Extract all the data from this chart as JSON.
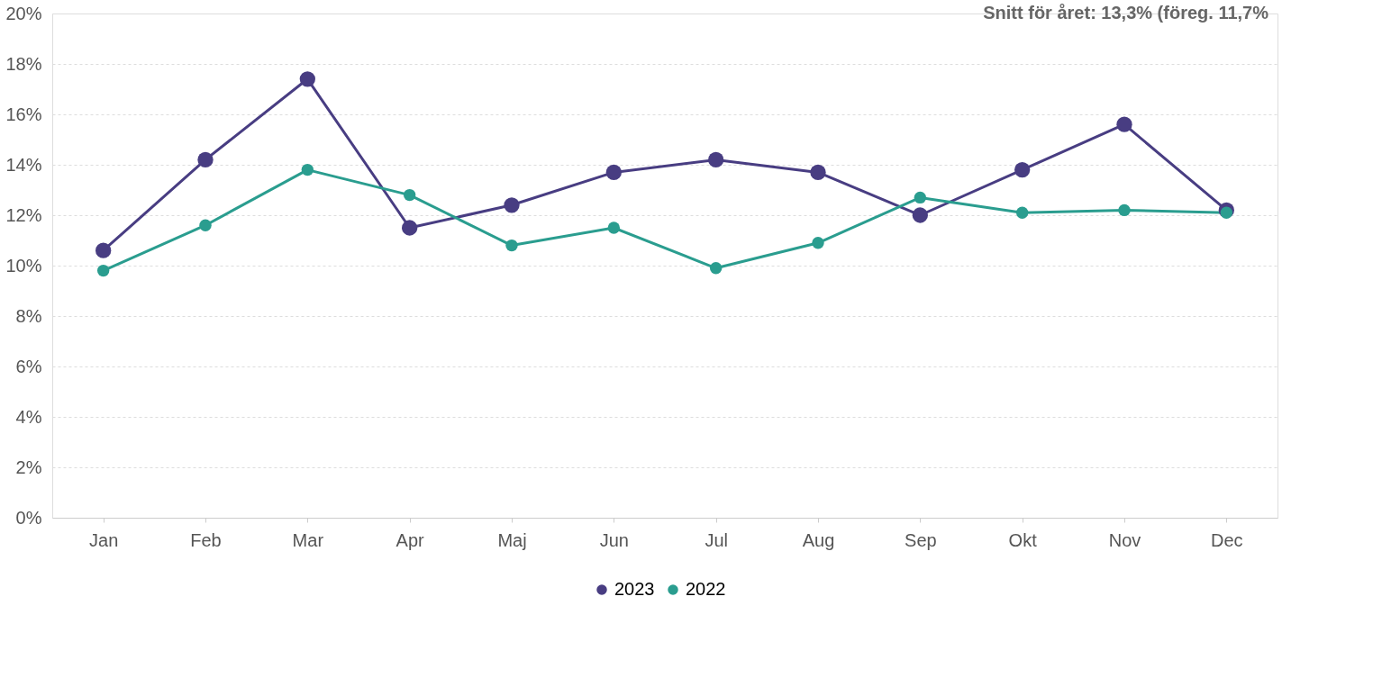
{
  "chart_data": {
    "type": "line",
    "categories": [
      "Jan",
      "Feb",
      "Mar",
      "Apr",
      "Maj",
      "Jun",
      "Jul",
      "Aug",
      "Sep",
      "Okt",
      "Nov",
      "Dec"
    ],
    "series": [
      {
        "name": "2023",
        "color": "#483d82",
        "values": [
          10.6,
          14.2,
          17.4,
          11.5,
          12.4,
          13.7,
          14.2,
          13.7,
          12.0,
          13.8,
          15.6,
          12.2
        ]
      },
      {
        "name": "2022",
        "color": "#2a9d8f",
        "values": [
          9.8,
          11.6,
          13.8,
          12.8,
          10.8,
          11.5,
          9.9,
          10.9,
          12.7,
          12.1,
          12.2,
          12.1
        ]
      }
    ],
    "ylim": [
      0,
      20
    ],
    "yticks": [
      {
        "value": 0,
        "label": "0%"
      },
      {
        "value": 2,
        "label": "2%"
      },
      {
        "value": 4,
        "label": "4%"
      },
      {
        "value": 6,
        "label": "6%"
      },
      {
        "value": 8,
        "label": "8%"
      },
      {
        "value": 10,
        "label": "10%"
      },
      {
        "value": 12,
        "label": "12%"
      },
      {
        "value": 14,
        "label": "14%"
      },
      {
        "value": 16,
        "label": "16%"
      },
      {
        "value": 18,
        "label": "18%"
      },
      {
        "value": 20,
        "label": "20%"
      }
    ],
    "annotations": [
      "Snitt för året: 13,3%  (föreg. 11,7%"
    ],
    "grid": "y",
    "legend": "bottom",
    "marker": "circle",
    "line_style": "solid"
  }
}
